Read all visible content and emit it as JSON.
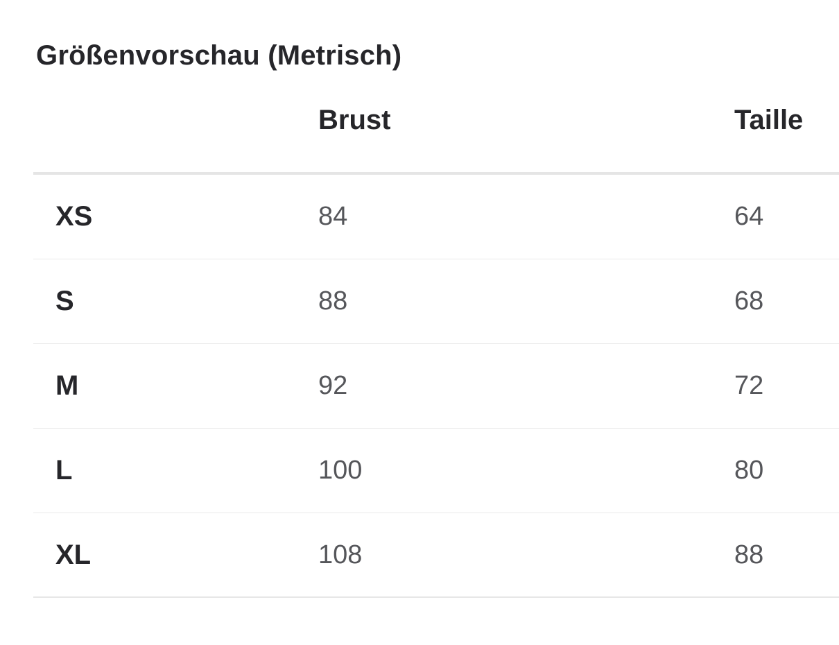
{
  "header": {
    "title": "Größenvorschau (Metrisch)"
  },
  "size_table": {
    "columns": {
      "chest": "Brust",
      "waist": "Taille"
    },
    "rows": [
      {
        "size": "XS",
        "chest": "84",
        "waist": "64"
      },
      {
        "size": "S",
        "chest": "88",
        "waist": "68"
      },
      {
        "size": "M",
        "chest": "92",
        "waist": "72"
      },
      {
        "size": "L",
        "chest": "100",
        "waist": "80"
      },
      {
        "size": "XL",
        "chest": "108",
        "waist": "88"
      }
    ]
  },
  "colors": {
    "background": "#ffffff",
    "text_primary": "#26262a",
    "text_secondary": "#55565a",
    "divider": "#eaeaea",
    "divider_strong": "#e5e5e5"
  }
}
